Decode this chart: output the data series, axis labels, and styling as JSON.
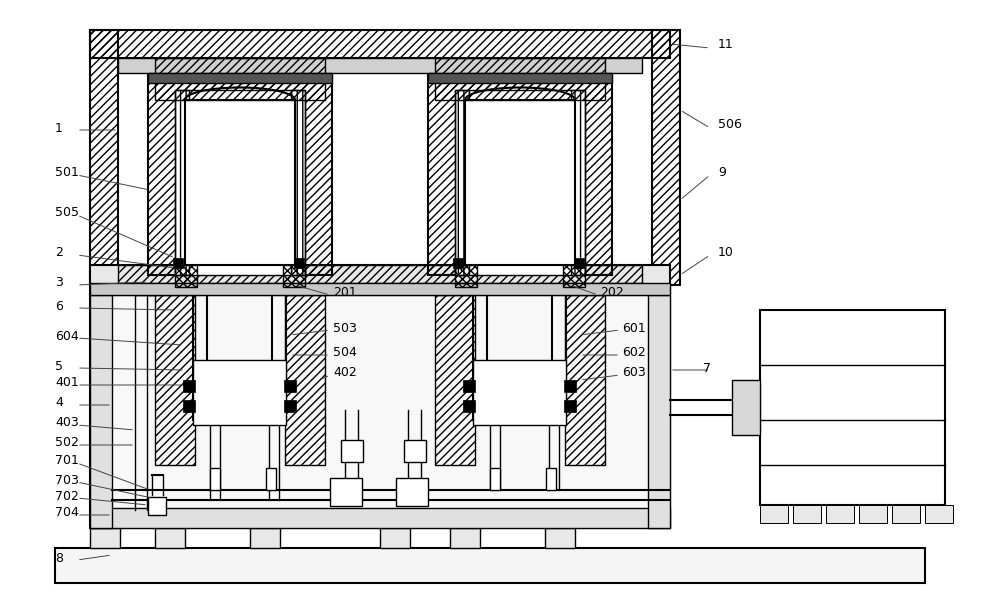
{
  "bg_color": "#ffffff",
  "lc": "#000000",
  "figsize": [
    10.0,
    6.1
  ],
  "dpi": 100
}
